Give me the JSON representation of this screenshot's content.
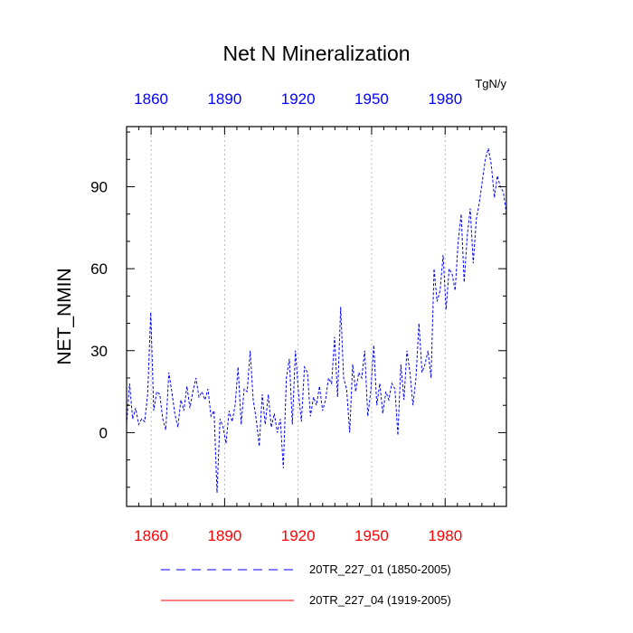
{
  "chart_data": {
    "type": "line",
    "title": "Net N Mineralization",
    "ylabel": "NET_NMIN",
    "units": "TgN/y",
    "xlim": [
      1850,
      2005
    ],
    "ylim": [
      -27,
      112
    ],
    "x_ticks": [
      1860,
      1890,
      1920,
      1950,
      1980
    ],
    "y_ticks": [
      0,
      30,
      60,
      90
    ],
    "bottom_axis_color": "#ff0000",
    "top_axis_color": "#0000ff",
    "grid": "vertical dotted lines at x ticks",
    "series": [
      {
        "name": "20TR_227_01 (1850-2005)",
        "color": "#0000ff",
        "style": "dashed",
        "x_start": 1850,
        "x_end": 2005,
        "values": [
          3,
          18,
          5,
          9,
          3,
          5,
          4,
          14,
          44,
          8,
          15,
          14,
          5,
          1,
          22,
          15,
          7,
          2,
          12,
          8,
          17,
          9,
          15,
          20,
          13,
          15,
          12,
          16,
          6,
          8,
          -22,
          5,
          2,
          -4,
          8,
          4,
          10,
          24,
          3,
          16,
          15,
          30,
          12,
          5,
          -5,
          14,
          3,
          14,
          2,
          7,
          0,
          5,
          -13,
          20,
          27,
          3,
          30,
          15,
          4,
          24,
          22,
          6,
          13,
          10,
          17,
          8,
          12,
          20,
          18,
          35,
          13,
          46,
          20,
          16,
          0,
          25,
          15,
          22,
          20,
          30,
          6,
          15,
          32,
          10,
          18,
          7,
          15,
          12,
          18,
          16,
          -1,
          25,
          12,
          30,
          22,
          10,
          20,
          40,
          22,
          25,
          30,
          20,
          60,
          48,
          52,
          65,
          45,
          60,
          58,
          52,
          70,
          80,
          55,
          72,
          82,
          62,
          78,
          84,
          92,
          100,
          104,
          98,
          86,
          94,
          90,
          88,
          80
        ]
      },
      {
        "name": "20TR_227_04 (1919-2005)",
        "color": "#ff0000",
        "style": "solid",
        "x_start": 1919,
        "x_end": 2005,
        "values": []
      }
    ],
    "legend_position": "bottom"
  }
}
